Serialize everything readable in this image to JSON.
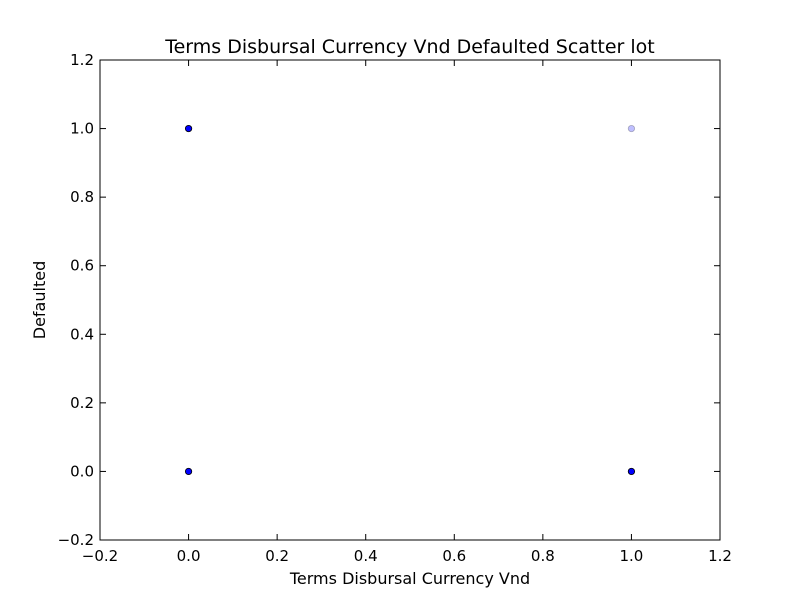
{
  "chart_data": {
    "type": "scatter",
    "title": "Terms Disbursal Currency Vnd Defaulted Scatter lot",
    "xlabel": "Terms Disbursal Currency Vnd",
    "ylabel": "Defaulted",
    "xlim": [
      -0.2,
      1.2
    ],
    "ylim": [
      -0.2,
      1.2
    ],
    "x_ticks": [
      -0.2,
      0.0,
      0.2,
      0.4,
      0.6,
      0.8,
      1.0,
      1.2
    ],
    "y_ticks": [
      -0.2,
      0.0,
      0.2,
      0.4,
      0.6,
      0.8,
      1.0,
      1.2
    ],
    "x_tick_labels": [
      "−0.2",
      "0.0",
      "0.2",
      "0.4",
      "0.6",
      "0.8",
      "1.0",
      "1.2"
    ],
    "y_tick_labels": [
      "−0.2",
      "0.0",
      "0.2",
      "0.4",
      "0.6",
      "0.8",
      "1.0",
      "1.2"
    ],
    "grid": false,
    "points": [
      {
        "x": 0,
        "y": 1,
        "opacity": 1.0
      },
      {
        "x": 0,
        "y": 0,
        "opacity": 1.0
      },
      {
        "x": 1,
        "y": 0,
        "opacity": 1.0
      },
      {
        "x": 1,
        "y": 1,
        "opacity": 0.25
      }
    ],
    "marker_color": "#0000ff",
    "marker_edge_color": "#000000"
  }
}
